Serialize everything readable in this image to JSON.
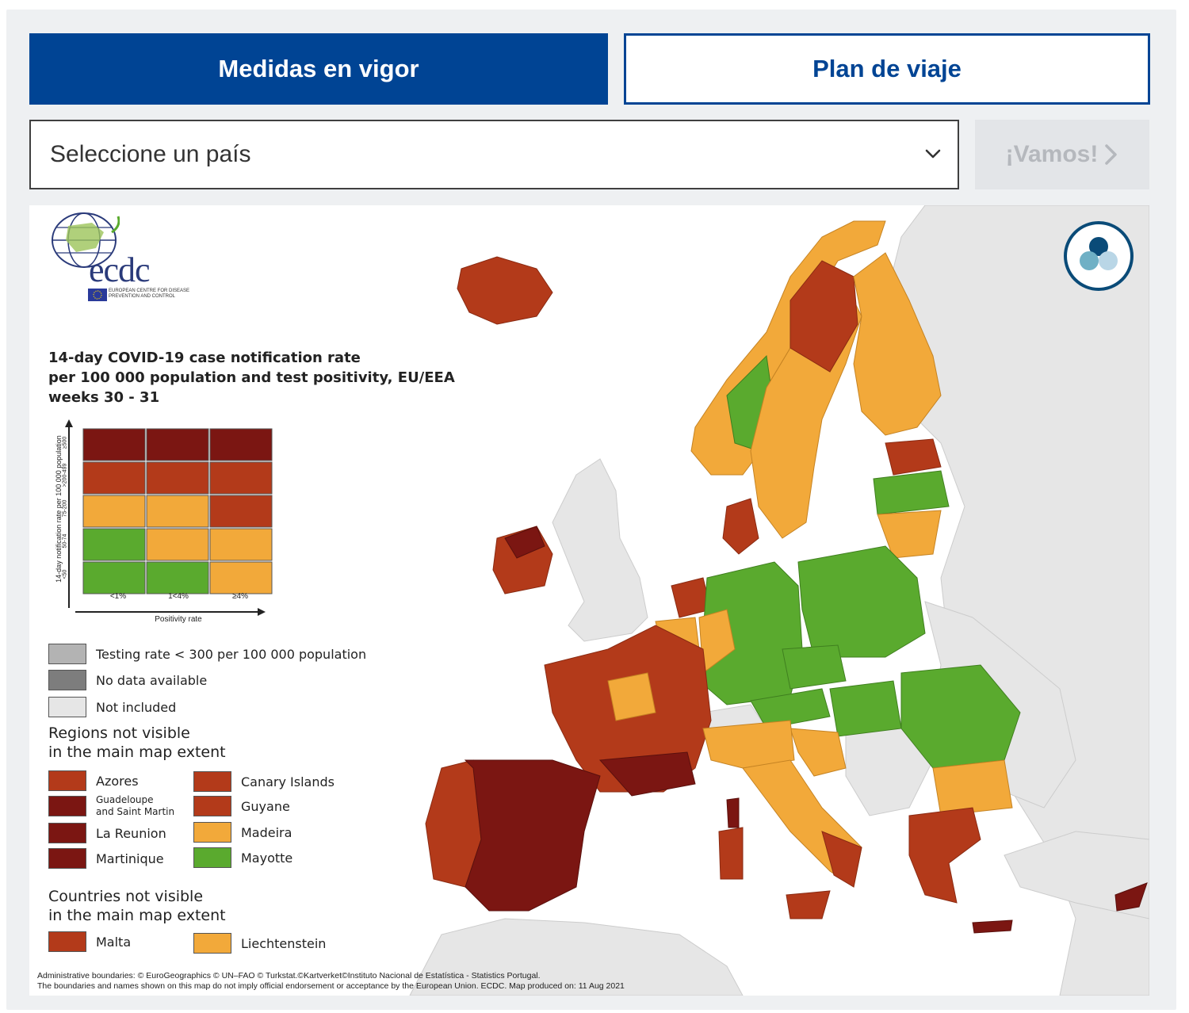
{
  "tabs": {
    "active_label": "Medidas en vigor",
    "inactive_label": "Plan de viaje"
  },
  "country_select": {
    "placeholder": "Seleccione un país",
    "icon": "chevron-down-icon"
  },
  "go_button": {
    "label": "¡Vamos!",
    "icon": "chevron-right-icon",
    "enabled": false
  },
  "map": {
    "logo": {
      "word": "ecdc",
      "subtitle": "EUROPEAN CENTRE FOR DISEASE PREVENTION AND CONTROL"
    },
    "title_lines": [
      "14-day COVID-19 case notification rate",
      "per 100 000 population and test positivity, EU/EEA",
      "weeks 30 - 31"
    ],
    "matrix": {
      "y_axis_label": "14-day notification rate per 100 000 population",
      "x_axis_label": "Positivity rate",
      "rows": [
        "≥500",
        ">200-499",
        "75-200",
        "50-74",
        "<50"
      ],
      "cols": [
        "<1%",
        "1<4%",
        "≥4%"
      ],
      "colors": [
        [
          "#7b1612",
          "#7b1612",
          "#7b1612"
        ],
        [
          "#b33a1a",
          "#b33a1a",
          "#b33a1a"
        ],
        [
          "#f2a93a",
          "#f2a93a",
          "#b33a1a"
        ],
        [
          "#5aaa2e",
          "#f2a93a",
          "#f2a93a"
        ],
        [
          "#5aaa2e",
          "#5aaa2e",
          "#f2a93a"
        ]
      ]
    },
    "status_legend": [
      {
        "label": "Testing rate < 300 per 100 000 population",
        "color": "#b3b3b3"
      },
      {
        "label": "No data available",
        "color": "#7d7d7d"
      },
      {
        "label": "Not included",
        "color": "#e6e6e6"
      }
    ],
    "regions_heading": [
      "Regions not visible",
      "in the main map extent"
    ],
    "regions_left": [
      {
        "label": "Azores",
        "color": "#b33a1a"
      },
      {
        "label": "Guadeloupe\nand Saint Martin",
        "color": "#7b1612"
      },
      {
        "label": "La Reunion",
        "color": "#7b1612"
      },
      {
        "label": "Martinique",
        "color": "#7b1612"
      }
    ],
    "regions_right": [
      {
        "label": "Canary Islands",
        "color": "#b33a1a"
      },
      {
        "label": "Guyane",
        "color": "#b33a1a"
      },
      {
        "label": "Madeira",
        "color": "#f2a93a"
      },
      {
        "label": "Mayotte",
        "color": "#5aaa2e"
      }
    ],
    "countries_heading": [
      "Countries not visible",
      "in the main map extent"
    ],
    "countries": [
      {
        "label": "Malta",
        "color": "#b33a1a"
      },
      {
        "label": "Liechtenstein",
        "color": "#f2a93a"
      }
    ],
    "credits": [
      "Administrative boundaries: © EuroGeographics © UN–FAO © Turkstat.©Kartverket©Instituto Nacional de Estatística - Statistics Portugal.",
      "The boundaries and names shown on this map do not imply official endorsement or acceptance by the European Union. ECDC. Map produced on: 11 Aug 2021"
    ],
    "layers_icon": "layers-icon",
    "colors": {
      "dark_red": "#7b1612",
      "red": "#b33a1a",
      "orange": "#f2a93a",
      "green": "#5aaa2e",
      "not_included": "#e6e6e6",
      "brand_blue": "#004494"
    }
  }
}
